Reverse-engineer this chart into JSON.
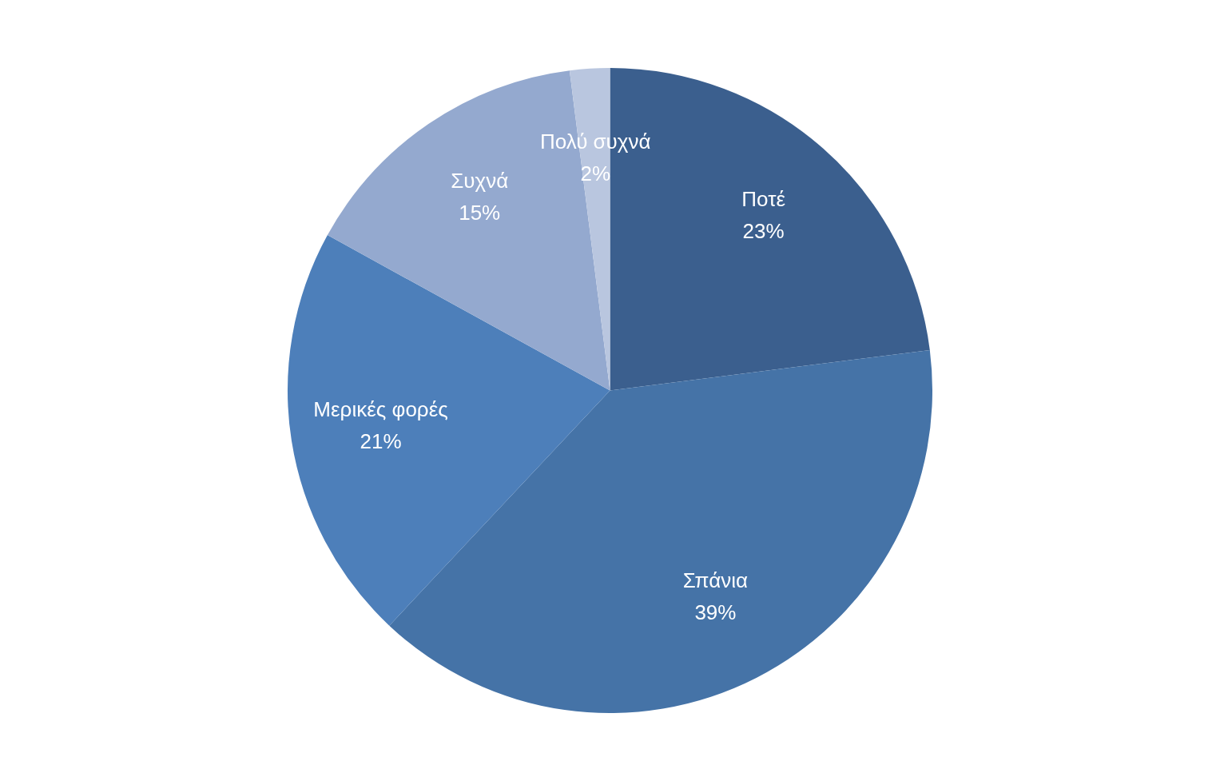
{
  "chart_data": {
    "type": "pie",
    "categories": [
      "Ποτέ",
      "Σπάνια",
      "Μερικές φορές",
      "Συχνά",
      "Πολύ συχνά"
    ],
    "values": [
      23,
      39,
      21,
      15,
      2
    ],
    "value_labels": [
      "23%",
      "39%",
      "21%",
      "15%",
      "2%"
    ],
    "colors": [
      "#3b5f8e",
      "#4573a7",
      "#4d7fba",
      "#94a9cf",
      "#b9c6df"
    ],
    "legend": false
  }
}
